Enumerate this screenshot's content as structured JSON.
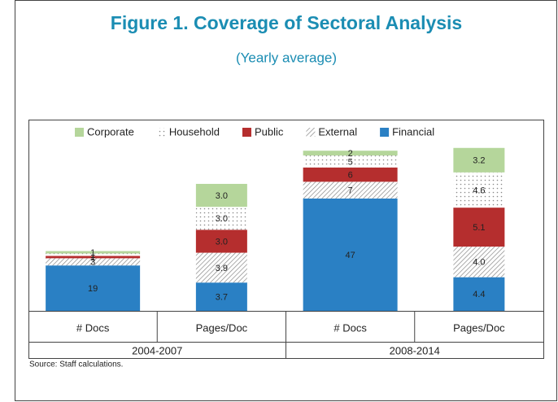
{
  "chart_data": {
    "type": "stacked-bar",
    "title": "Figure 1. Coverage of Sectoral Analysis",
    "subtitle": "(Yearly average)",
    "source": "Source: Staff calculations.",
    "categories": [
      "# Docs",
      "Pages/Doc",
      "# Docs",
      "Pages/Doc"
    ],
    "category_groups": [
      "2004-2007",
      "2004-2007",
      "2008-2014",
      "2008-2014"
    ],
    "category_axis": [
      "y",
      "y2",
      "y",
      "y2"
    ],
    "ylim": [
      0,
      80
    ],
    "y2lim": [
      0,
      25
    ],
    "legend": "top",
    "series": [
      {
        "name": "Corporate",
        "color": "#b5d69b",
        "values": [
          1,
          3.0,
          2,
          3.2
        ],
        "value_labels": [
          "1",
          "3.0",
          "2",
          "3.2"
        ]
      },
      {
        "name": "Household",
        "color": "#ffffff",
        "pattern": "dots",
        "values": [
          1,
          3.0,
          5,
          4.6
        ],
        "value_labels": [
          "1",
          "3.0",
          "5",
          "4.6"
        ]
      },
      {
        "name": "Public",
        "color": "#b52e2e",
        "values": [
          1,
          3.0,
          6,
          5.1
        ],
        "value_labels": [
          "1",
          "3.0",
          "6",
          "5.1"
        ]
      },
      {
        "name": "External",
        "color": "#ffffff",
        "pattern": "hatch",
        "values": [
          3,
          3.9,
          7,
          4.0
        ],
        "value_labels": [
          "3",
          "3.9",
          "7",
          "4.0"
        ]
      },
      {
        "name": "Financial",
        "color": "#2a80c4",
        "values": [
          19,
          3.7,
          47,
          4.4
        ],
        "value_labels": [
          "19",
          "3.7",
          "47",
          "4.4"
        ]
      }
    ]
  }
}
